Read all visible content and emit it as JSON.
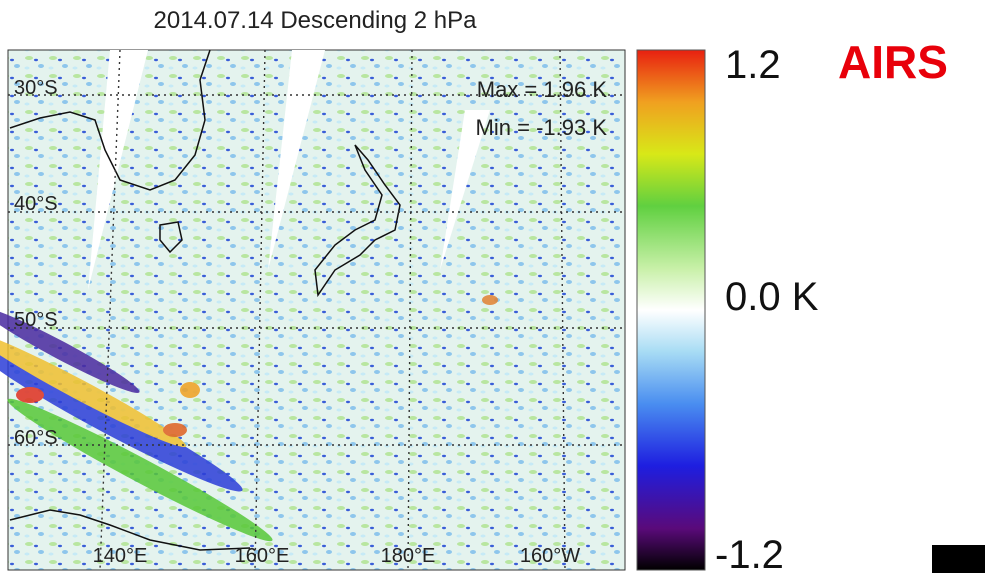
{
  "title": "2014.07.14 Descending 2 hPa",
  "stats": {
    "max": "Max = 1.96 K",
    "min": "Min = -1.93 K"
  },
  "latitude_labels": [
    "30°S",
    "40°S",
    "50°S",
    "60°S"
  ],
  "longitude_labels": [
    "140°E",
    "160°E",
    "180°E",
    "160°W"
  ],
  "colorbar": {
    "labels": [
      "1.2",
      "0.0 K",
      "-1.2"
    ]
  },
  "instrument": "AIRS"
}
